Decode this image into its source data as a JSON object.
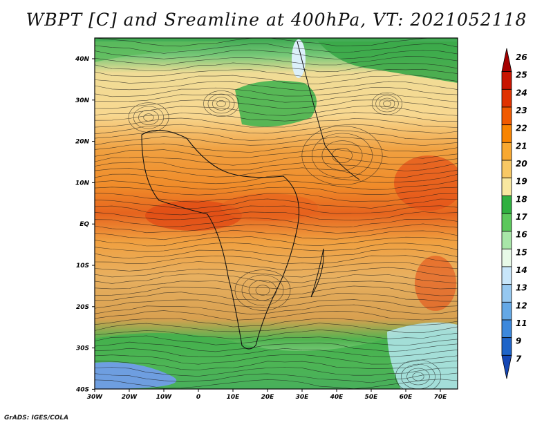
{
  "title": "WBPT [C] and Sreamline at 400hPa, VT: 2021052118",
  "credit": "GrADS: IGES/COLA",
  "axes": {
    "x_labels": [
      "30W",
      "20W",
      "10W",
      "0",
      "10E",
      "20E",
      "30E",
      "40E",
      "50E",
      "60E",
      "70E"
    ],
    "y_labels": [
      "40N",
      "30N",
      "20N",
      "10N",
      "EQ",
      "10S",
      "20S",
      "30S",
      "40S"
    ]
  },
  "colorbar": {
    "labels": [
      "26",
      "25",
      "24",
      "23",
      "22",
      "21",
      "20",
      "19",
      "18",
      "17",
      "16",
      "15",
      "14",
      "13",
      "12",
      "11",
      "9",
      "7"
    ],
    "colors": [
      "#a50000",
      "#c81400",
      "#e03200",
      "#f05a00",
      "#f88400",
      "#f8a830",
      "#f8c864",
      "#f8e8a0",
      "#30b040",
      "#5cc85c",
      "#a8e6a8",
      "#e8fae8",
      "#c8e6fa",
      "#96c8f0",
      "#64a8e6",
      "#3c88dc",
      "#1e64c8",
      "#1446b4"
    ]
  },
  "icons": {
    "streamline": "streamline-arrows",
    "coastline": "coastline"
  }
}
